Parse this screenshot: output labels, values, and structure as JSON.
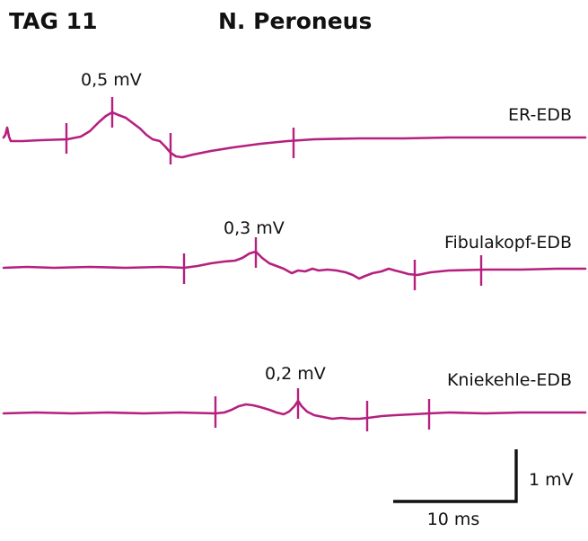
{
  "header": {
    "day_label": "TAG 11",
    "nerve_label": "N. Peroneus"
  },
  "colors": {
    "trace": "#b5207f",
    "text": "#111111"
  },
  "traces": [
    {
      "site_label": "ER-EDB",
      "amplitude_label": "0,5 mV"
    },
    {
      "site_label": "Fibulakopf-EDB",
      "amplitude_label": "0,3 mV"
    },
    {
      "site_label": "Kniekehle-EDB",
      "amplitude_label": "0,2 mV"
    }
  ],
  "scale_bar": {
    "amplitude_label": "1 mV",
    "time_label": "10 ms"
  }
}
